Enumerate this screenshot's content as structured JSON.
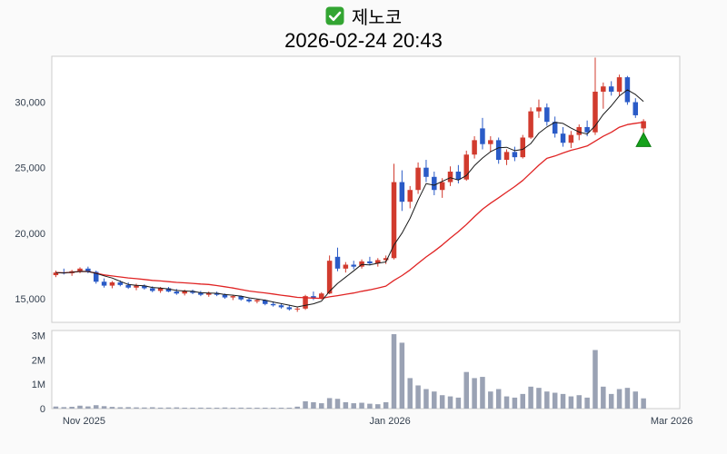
{
  "header": {
    "symbol": "제노코",
    "datetime": "2026-02-24 20:43",
    "icon_color": "#33a532"
  },
  "chart_data": {
    "type": "candlestick",
    "title": "제노코",
    "subtitle": "2026-02-24 20:43",
    "x_axis": {
      "labels": [
        "Nov 2025",
        "Jan 2026",
        "Mar 2026"
      ],
      "label_slots": [
        4,
        42,
        77
      ],
      "total_slots": 78
    },
    "price_axis": {
      "ticks": [
        15000,
        20000,
        25000,
        30000
      ],
      "range": [
        13200,
        33500
      ]
    },
    "volume_axis": {
      "tick_labels": [
        "0",
        "1M",
        "2M",
        "3M"
      ],
      "tick_values": [
        0,
        1000000,
        2000000,
        3000000
      ],
      "range": [
        0,
        3200000
      ]
    },
    "series": {
      "candles_format": [
        "open",
        "high",
        "low",
        "close",
        "volume"
      ],
      "candles": [
        [
          16800,
          17150,
          16650,
          17000,
          85000
        ],
        [
          17000,
          17300,
          16850,
          16950,
          60000
        ],
        [
          16950,
          17200,
          16750,
          17100,
          75000
        ],
        [
          17100,
          17400,
          16950,
          17300,
          120000
        ],
        [
          17300,
          17450,
          16950,
          17050,
          90000
        ],
        [
          17050,
          17150,
          16150,
          16300,
          140000
        ],
        [
          16300,
          16550,
          15850,
          16000,
          100000
        ],
        [
          16000,
          16350,
          15800,
          16250,
          70000
        ],
        [
          16250,
          16400,
          15950,
          16050,
          55000
        ],
        [
          16050,
          16250,
          15750,
          15850,
          60000
        ],
        [
          15850,
          16150,
          15650,
          16000,
          50000
        ],
        [
          16000,
          16100,
          15700,
          15800,
          45000
        ],
        [
          15800,
          15950,
          15500,
          15600,
          55000
        ],
        [
          15600,
          15900,
          15450,
          15800,
          40000
        ],
        [
          15800,
          15900,
          15500,
          15550,
          45000
        ],
        [
          15550,
          15750,
          15300,
          15400,
          50000
        ],
        [
          15400,
          15700,
          15250,
          15600,
          35000
        ],
        [
          15600,
          15700,
          15350,
          15450,
          30000
        ],
        [
          15450,
          15600,
          15200,
          15300,
          40000
        ],
        [
          15300,
          15550,
          15150,
          15450,
          35000
        ],
        [
          15450,
          15550,
          15200,
          15300,
          30000
        ],
        [
          15300,
          15400,
          15000,
          15100,
          45000
        ],
        [
          15100,
          15300,
          14900,
          15200,
          35000
        ],
        [
          15200,
          15250,
          14850,
          14950,
          40000
        ],
        [
          14950,
          15100,
          14700,
          14800,
          35000
        ],
        [
          14800,
          15000,
          14650,
          14900,
          30000
        ],
        [
          14900,
          14950,
          14500,
          14600,
          35000
        ],
        [
          14600,
          14800,
          14400,
          14500,
          28000
        ],
        [
          14500,
          14650,
          14250,
          14350,
          30000
        ],
        [
          14350,
          14500,
          14100,
          14200,
          32000
        ],
        [
          14200,
          14350,
          14000,
          14250,
          80000
        ],
        [
          14250,
          15300,
          14150,
          15200,
          300000
        ],
        [
          15200,
          15550,
          14900,
          15050,
          260000
        ],
        [
          15050,
          15500,
          14950,
          15400,
          220000
        ],
        [
          15400,
          18300,
          15350,
          17900,
          430000
        ],
        [
          18200,
          18900,
          17100,
          17300,
          400000
        ],
        [
          17300,
          17800,
          17000,
          17600,
          260000
        ],
        [
          17600,
          17900,
          17250,
          17450,
          220000
        ],
        [
          17450,
          18000,
          17300,
          17850,
          240000
        ],
        [
          17850,
          18200,
          17550,
          17700,
          200000
        ],
        [
          17700,
          18100,
          17450,
          17950,
          180000
        ],
        [
          17950,
          18300,
          17650,
          18100,
          260000
        ],
        [
          18100,
          25300,
          18000,
          23900,
          3050000
        ],
        [
          23900,
          24800,
          21700,
          22400,
          2700000
        ],
        [
          22400,
          23600,
          21900,
          23300,
          1250000
        ],
        [
          23300,
          25400,
          23000,
          25000,
          950000
        ],
        [
          25000,
          25600,
          23900,
          24300,
          800000
        ],
        [
          24300,
          24700,
          22900,
          23300,
          700000
        ],
        [
          23300,
          24200,
          22700,
          23900,
          550000
        ],
        [
          23900,
          25100,
          23600,
          24700,
          500000
        ],
        [
          24700,
          25200,
          23800,
          24100,
          450000
        ],
        [
          24100,
          26300,
          24000,
          26000,
          1500000
        ],
        [
          26000,
          27400,
          25700,
          27100,
          1250000
        ],
        [
          28000,
          28800,
          26400,
          26800,
          1300000
        ],
        [
          26800,
          27400,
          26200,
          27100,
          700000
        ],
        [
          27100,
          27300,
          25300,
          25600,
          800000
        ],
        [
          25600,
          26400,
          25200,
          26200,
          500000
        ],
        [
          26200,
          26600,
          25500,
          25800,
          450000
        ],
        [
          25800,
          27500,
          25700,
          27300,
          600000
        ],
        [
          27300,
          29600,
          27200,
          29300,
          900000
        ],
        [
          29300,
          30200,
          28800,
          29600,
          850000
        ],
        [
          29600,
          29900,
          28200,
          28500,
          700000
        ],
        [
          28500,
          28900,
          27300,
          27600,
          650000
        ],
        [
          27600,
          28100,
          26600,
          26900,
          600000
        ],
        [
          26900,
          27800,
          26500,
          27500,
          500000
        ],
        [
          27500,
          28300,
          27100,
          28100,
          550000
        ],
        [
          28100,
          28600,
          27400,
          27700,
          450000
        ],
        [
          27700,
          33400,
          27500,
          30800,
          2400000
        ],
        [
          30800,
          31500,
          29500,
          31200,
          900000
        ],
        [
          31200,
          31600,
          30500,
          30800,
          600000
        ],
        [
          30800,
          32100,
          30500,
          31900,
          800000
        ],
        [
          31900,
          32000,
          29800,
          30000,
          850000
        ],
        [
          30000,
          30300,
          28800,
          29000,
          700000
        ],
        [
          28000,
          28700,
          27600,
          28550,
          420000
        ]
      ]
    },
    "overlays": [
      {
        "name": "ma-short",
        "type": "sma",
        "window": 5,
        "color": "#1a1a1a",
        "width": 1
      },
      {
        "name": "ma-long",
        "type": "sma",
        "window": 20,
        "color": "#e02424",
        "width": 1.3
      }
    ],
    "marker": {
      "type": "up-triangle",
      "index": 73,
      "price": 27100,
      "color": "#15a21b",
      "stroke": "#0c7a10"
    },
    "colors": {
      "up": "#d13b2e",
      "down": "#2a5bc7",
      "volume": "#9aa2b4",
      "plot_border": "#cccccc",
      "plot_bg": "#ffffff",
      "page_bg": "#fafafa",
      "axis_text": "#333f4e"
    }
  }
}
